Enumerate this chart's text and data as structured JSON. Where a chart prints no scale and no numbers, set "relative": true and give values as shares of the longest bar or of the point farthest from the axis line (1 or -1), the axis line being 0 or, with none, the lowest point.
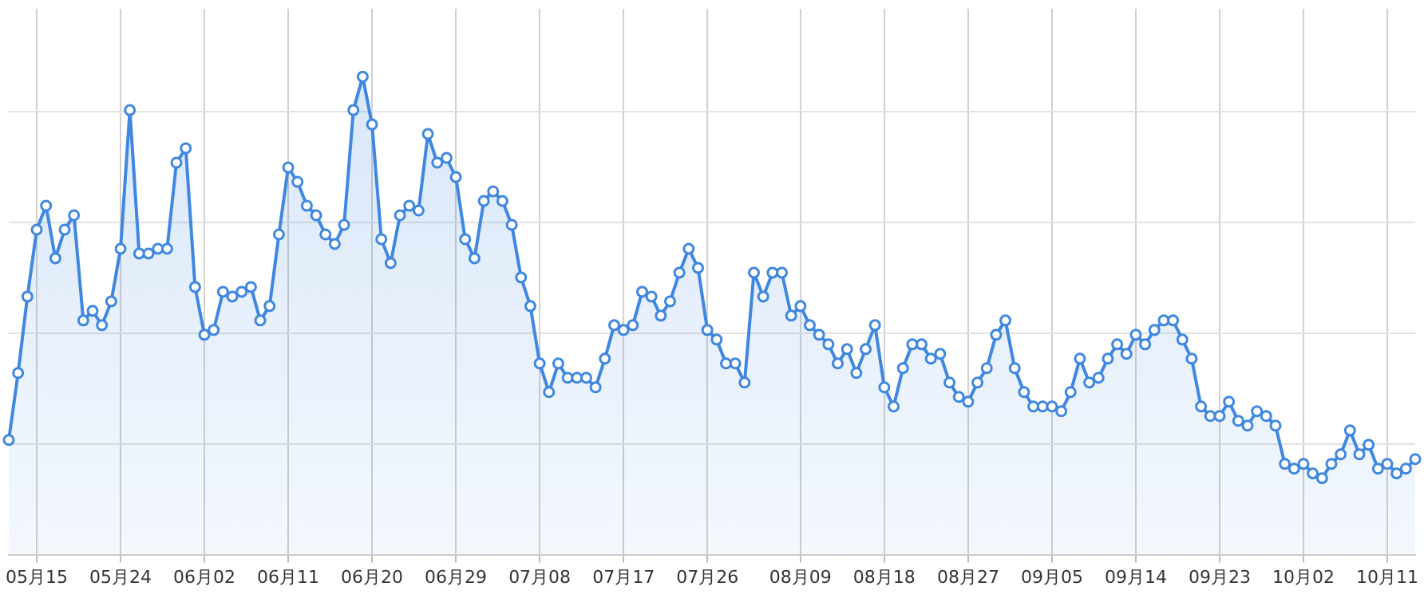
{
  "chart_data": {
    "type": "area",
    "relative": true,
    "grid": true,
    "marker": "circle",
    "categories": [
      null,
      null,
      null,
      "05月15",
      null,
      null,
      null,
      null,
      null,
      null,
      null,
      null,
      "05月24",
      null,
      null,
      null,
      null,
      null,
      null,
      null,
      null,
      "06月02",
      null,
      null,
      null,
      null,
      null,
      null,
      null,
      null,
      "06月11",
      null,
      null,
      null,
      null,
      null,
      null,
      null,
      null,
      "06月20",
      null,
      null,
      null,
      null,
      null,
      null,
      null,
      null,
      "06月29",
      null,
      null,
      null,
      null,
      null,
      null,
      null,
      null,
      "07月08",
      null,
      null,
      null,
      null,
      null,
      null,
      null,
      null,
      "07月17",
      null,
      null,
      null,
      null,
      null,
      null,
      null,
      null,
      "07月26",
      null,
      null,
      null,
      null,
      null,
      null,
      null,
      null,
      null,
      "08月09",
      null,
      null,
      null,
      null,
      null,
      null,
      null,
      null,
      "08月18",
      null,
      null,
      null,
      null,
      null,
      null,
      null,
      null,
      "08月27",
      null,
      null,
      null,
      null,
      null,
      null,
      null,
      null,
      "09月05",
      null,
      null,
      null,
      null,
      null,
      null,
      null,
      null,
      "09月14",
      null,
      null,
      null,
      null,
      null,
      null,
      null,
      null,
      "09月23",
      null,
      null,
      null,
      null,
      null,
      null,
      null,
      null,
      "10月02",
      null,
      null,
      null,
      null,
      null,
      null,
      null,
      null,
      "10月11",
      null,
      null,
      null
    ],
    "series": [
      {
        "color": "#3f87e0",
        "values": [
          0.24,
          0.38,
          0.54,
          0.68,
          0.73,
          0.62,
          0.68,
          0.71,
          0.49,
          0.51,
          0.48,
          0.53,
          0.64,
          0.93,
          0.63,
          0.63,
          0.64,
          0.64,
          0.82,
          0.85,
          0.56,
          0.46,
          0.47,
          0.55,
          0.54,
          0.55,
          0.56,
          0.49,
          0.52,
          0.67,
          0.81,
          0.78,
          0.73,
          0.71,
          0.67,
          0.65,
          0.69,
          0.93,
          1.0,
          0.9,
          0.66,
          0.61,
          0.71,
          0.73,
          0.72,
          0.88,
          0.82,
          0.83,
          0.79,
          0.66,
          0.62,
          0.74,
          0.76,
          0.74,
          0.69,
          0.58,
          0.52,
          0.4,
          0.34,
          0.4,
          0.37,
          0.37,
          0.37,
          0.35,
          0.41,
          0.48,
          0.47,
          0.48,
          0.55,
          0.54,
          0.5,
          0.53,
          0.59,
          0.64,
          0.6,
          0.47,
          0.45,
          0.4,
          0.4,
          0.36,
          0.59,
          0.54,
          0.59,
          0.59,
          0.5,
          0.52,
          0.48,
          0.46,
          0.44,
          0.4,
          0.43,
          0.38,
          0.43,
          0.48,
          0.35,
          0.31,
          0.39,
          0.44,
          0.44,
          0.41,
          0.42,
          0.36,
          0.33,
          0.32,
          0.36,
          0.39,
          0.46,
          0.49,
          0.39,
          0.34,
          0.31,
          0.31,
          0.31,
          0.3,
          0.34,
          0.41,
          0.36,
          0.37,
          0.41,
          0.44,
          0.42,
          0.46,
          0.44,
          0.47,
          0.49,
          0.49,
          0.45,
          0.41,
          0.31,
          0.29,
          0.29,
          0.32,
          0.28,
          0.27,
          0.3,
          0.29,
          0.27,
          0.19,
          0.18,
          0.19,
          0.17,
          0.16,
          0.19,
          0.21,
          0.26,
          0.21,
          0.23,
          0.18,
          0.19,
          0.17,
          0.18,
          0.2
        ]
      }
    ]
  }
}
